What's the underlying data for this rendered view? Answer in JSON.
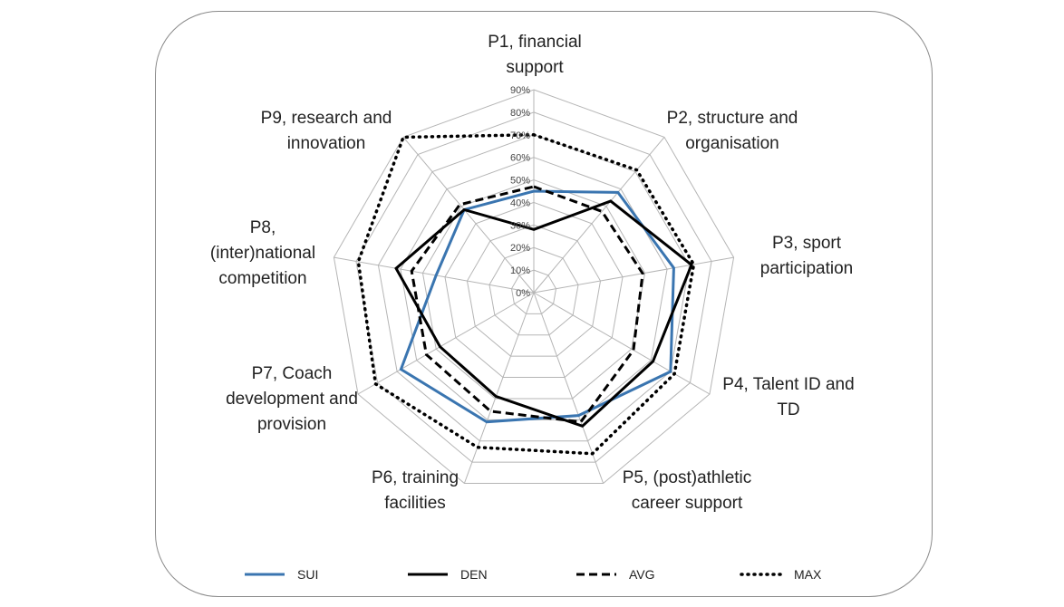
{
  "chart_data": {
    "type": "radar",
    "title": "",
    "categories": [
      [
        "P1, financial",
        "support"
      ],
      [
        "P2, structure and",
        "organisation"
      ],
      [
        "P3, sport",
        "participation"
      ],
      [
        "P4, Talent ID and",
        "TD"
      ],
      [
        "P5, (post)athletic",
        "career support"
      ],
      [
        "P6, training",
        "facilities"
      ],
      [
        "P7, Coach",
        "development and",
        "provision"
      ],
      [
        "P8,",
        "(inter)national",
        "competition"
      ],
      [
        "P9, research and",
        "innovation"
      ]
    ],
    "rlim": [
      0,
      90
    ],
    "ticks": [
      "0%",
      "10%",
      "20%",
      "30%",
      "40%",
      "50%",
      "60%",
      "70%",
      "80%",
      "90%"
    ],
    "grid": true,
    "legend_position": "bottom",
    "series": [
      {
        "name": "SUI",
        "color": "#3a75b0",
        "style": "solid",
        "values": [
          45,
          58,
          63,
          70,
          58,
          61,
          68,
          44,
          48
        ]
      },
      {
        "name": "DEN",
        "color": "#000000",
        "style": "solid",
        "values": [
          28,
          53,
          71,
          61,
          63,
          49,
          48,
          62,
          48
        ]
      },
      {
        "name": "AVG",
        "color": "#000000",
        "style": "dashed",
        "values": [
          47,
          47,
          49,
          51,
          61,
          56,
          55,
          55,
          51
        ]
      },
      {
        "name": "MAX",
        "color": "#000000",
        "style": "dotted",
        "values": [
          70,
          71,
          72,
          72,
          76,
          73,
          81,
          79,
          90
        ]
      }
    ]
  }
}
